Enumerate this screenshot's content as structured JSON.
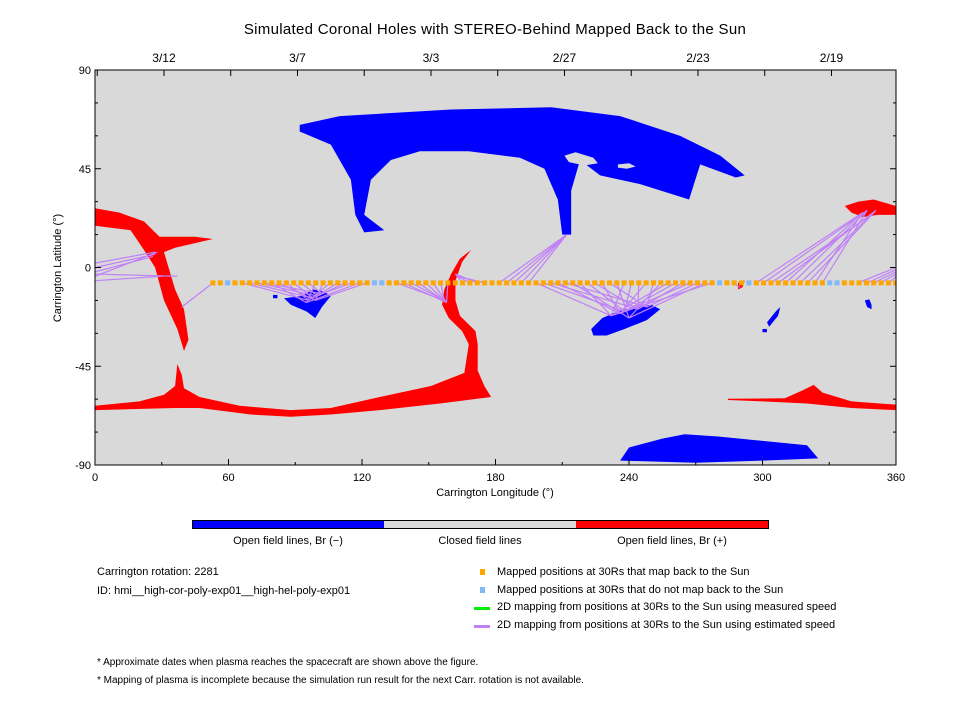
{
  "chart_data": {
    "type": "map",
    "title": "Simulated Coronal Holes with STEREO-Behind Mapped Back to the Sun",
    "xlabel": "Carrington Longitude (°)",
    "ylabel": "Carrington Latitude (°)",
    "xlim": [
      0,
      360
    ],
    "ylim": [
      -90,
      90
    ],
    "xticks": [
      0,
      60,
      120,
      180,
      240,
      300,
      360
    ],
    "yticks": [
      90,
      45,
      0,
      -45,
      -90
    ],
    "top_dates": [
      {
        "lon": 31,
        "label": "3/12"
      },
      {
        "lon": 91,
        "label": "3/7"
      },
      {
        "lon": 151,
        "label": "3/3"
      },
      {
        "lon": 211,
        "label": "2/27"
      },
      {
        "lon": 271,
        "label": "2/23"
      },
      {
        "lon": 331,
        "label": "2/19"
      }
    ],
    "colors": {
      "background": "#d9d9d9",
      "open_neg": "#0000ff",
      "open_pos": "#ff0000",
      "mapped": "#ffa500",
      "unmapped": "#80b8f8",
      "measured": "#00ee00",
      "estimated": "#c080f8"
    },
    "regions": [
      {
        "polarity": "neg",
        "points": [
          [
            92,
            65
          ],
          [
            110,
            69
          ],
          [
            160,
            72
          ],
          [
            205,
            73
          ],
          [
            236,
            69
          ],
          [
            263,
            60
          ],
          [
            281,
            51
          ],
          [
            292,
            42
          ],
          [
            288,
            41
          ],
          [
            272,
            47
          ],
          [
            267,
            31
          ],
          [
            245,
            38
          ],
          [
            227,
            42
          ],
          [
            218,
            49
          ],
          [
            214,
            35
          ],
          [
            214,
            15
          ],
          [
            210,
            15
          ],
          [
            208,
            31
          ],
          [
            202,
            45
          ],
          [
            191,
            50
          ],
          [
            168,
            53
          ],
          [
            146,
            53
          ],
          [
            133,
            49
          ],
          [
            124,
            40
          ],
          [
            121,
            24
          ],
          [
            130,
            17
          ],
          [
            121,
            16
          ],
          [
            117,
            24
          ],
          [
            115,
            40
          ],
          [
            106,
            56
          ],
          [
            92,
            62
          ]
        ]
      },
      {
        "polarity": "closed",
        "points": [
          [
            211,
            51
          ],
          [
            216,
            52.5
          ],
          [
            224,
            50
          ],
          [
            226,
            47.5
          ],
          [
            220,
            46.5
          ],
          [
            213,
            48
          ]
        ]
      },
      {
        "polarity": "closed",
        "points": [
          [
            235,
            47
          ],
          [
            240,
            47.5
          ],
          [
            243,
            46
          ],
          [
            239,
            45
          ],
          [
            235,
            45.5
          ]
        ]
      },
      {
        "polarity": "neg",
        "points": [
          [
            236,
            -88
          ],
          [
            240,
            -82
          ],
          [
            255,
            -78
          ],
          [
            265,
            -76
          ],
          [
            280,
            -77
          ],
          [
            300,
            -79
          ],
          [
            320,
            -81
          ],
          [
            325,
            -87
          ],
          [
            300,
            -88
          ],
          [
            270,
            -89
          ]
        ]
      },
      {
        "polarity": "neg",
        "points": [
          [
            85,
            -14
          ],
          [
            93,
            -13
          ],
          [
            98,
            -10
          ],
          [
            103,
            -11
          ],
          [
            106,
            -13
          ],
          [
            102,
            -18
          ],
          [
            99,
            -23
          ],
          [
            95,
            -20
          ],
          [
            88,
            -17
          ]
        ]
      },
      {
        "polarity": "neg",
        "points": [
          [
            80,
            -12.5
          ],
          [
            82,
            -12.5
          ],
          [
            82,
            -14
          ],
          [
            80,
            -14
          ]
        ]
      },
      {
        "polarity": "neg",
        "points": [
          [
            223,
            -28
          ],
          [
            228,
            -23
          ],
          [
            235,
            -20
          ],
          [
            243,
            -18
          ],
          [
            250,
            -17
          ],
          [
            254,
            -19
          ],
          [
            248,
            -24
          ],
          [
            238,
            -28
          ],
          [
            230,
            -31
          ],
          [
            224,
            -31
          ]
        ]
      },
      {
        "polarity": "neg",
        "points": [
          [
            308,
            -18
          ],
          [
            307,
            -22
          ],
          [
            303,
            -27
          ],
          [
            302,
            -25
          ],
          [
            306,
            -20
          ]
        ]
      },
      {
        "polarity": "neg",
        "points": [
          [
            300,
            -28
          ],
          [
            302,
            -28
          ],
          [
            302,
            -29.5
          ],
          [
            300,
            -29.5
          ]
        ]
      },
      {
        "polarity": "neg",
        "points": [
          [
            346,
            -15
          ],
          [
            348,
            -14.5
          ],
          [
            349,
            -17
          ],
          [
            349,
            -19
          ],
          [
            347,
            -18
          ]
        ]
      },
      {
        "polarity": "pos",
        "points": [
          [
            0,
            27
          ],
          [
            11,
            25
          ],
          [
            22,
            21
          ],
          [
            29,
            14
          ],
          [
            45,
            14
          ],
          [
            53,
            13
          ],
          [
            36,
            9
          ],
          [
            31,
            7
          ],
          [
            36,
            -10
          ],
          [
            40,
            -19
          ],
          [
            42,
            -33
          ],
          [
            40,
            -38
          ],
          [
            37,
            -28
          ],
          [
            31,
            -15
          ],
          [
            27,
            0
          ],
          [
            22,
            8
          ],
          [
            16,
            17
          ],
          [
            0,
            19
          ]
        ]
      },
      {
        "polarity": "pos",
        "points": [
          [
            169,
            8
          ],
          [
            165,
            2.5
          ],
          [
            162,
            -6
          ],
          [
            162,
            -15
          ],
          [
            164,
            -22
          ],
          [
            171,
            -29
          ],
          [
            172,
            -35
          ],
          [
            172,
            -47
          ],
          [
            175,
            -54
          ],
          [
            178,
            -59
          ],
          [
            155,
            -62
          ],
          [
            128,
            -65
          ],
          [
            106,
            -67
          ],
          [
            88,
            -68
          ],
          [
            70,
            -67
          ],
          [
            47,
            -64
          ],
          [
            36,
            -64
          ],
          [
            0,
            -65
          ],
          [
            0,
            -63
          ],
          [
            20,
            -61
          ],
          [
            31,
            -58
          ],
          [
            36,
            -54
          ],
          [
            37,
            -44
          ],
          [
            39,
            -49
          ],
          [
            40,
            -55
          ],
          [
            47,
            -59
          ],
          [
            65,
            -63
          ],
          [
            88,
            -65
          ],
          [
            106,
            -64
          ],
          [
            128,
            -59
          ],
          [
            151,
            -54
          ],
          [
            166,
            -48
          ],
          [
            168,
            -35
          ],
          [
            165,
            -29
          ],
          [
            159,
            -23
          ],
          [
            156,
            -17
          ],
          [
            157,
            -10
          ],
          [
            160,
            -3
          ],
          [
            164,
            4
          ]
        ]
      },
      {
        "polarity": "pos",
        "points": [
          [
            284.5,
            -59.8
          ],
          [
            310,
            -59.6
          ],
          [
            318,
            -56
          ],
          [
            323,
            -53.5
          ],
          [
            327,
            -57
          ],
          [
            340,
            -61
          ],
          [
            360,
            -62.5
          ],
          [
            360,
            -65
          ],
          [
            340,
            -64
          ],
          [
            320,
            -62
          ],
          [
            300,
            -61
          ],
          [
            284.5,
            -60.4
          ]
        ]
      },
      {
        "polarity": "pos",
        "points": [
          [
            337,
            28
          ],
          [
            343,
            30
          ],
          [
            350,
            31
          ],
          [
            360,
            28
          ],
          [
            360,
            24
          ],
          [
            352,
            24
          ],
          [
            345,
            23
          ],
          [
            340,
            25
          ]
        ]
      },
      {
        "polarity": "pos",
        "points": [
          [
            289,
            -7
          ],
          [
            292,
            -6
          ],
          [
            291,
            -9
          ],
          [
            289,
            -10
          ]
        ]
      }
    ],
    "mapped_positions": {
      "lat": -7,
      "lon_start": 53,
      "lon_step": 3.3,
      "lon_end": 360,
      "unmapped_lons": [
        61,
        127,
        130,
        281,
        294,
        329,
        333
      ]
    },
    "mapping_lines": [
      {
        "from": [
          [
            0,
            2
          ],
          [
            0,
            0
          ],
          [
            0,
            -2
          ],
          [
            0,
            -3
          ],
          [
            0,
            -4
          ],
          [
            0,
            -6
          ]
        ],
        "to": [
          [
            27,
            7
          ],
          [
            27,
            6
          ],
          [
            26,
            5
          ],
          [
            37,
            -4
          ],
          [
            28,
            7
          ],
          [
            30,
            -4
          ]
        ]
      },
      {
        "from": [
          [
            343,
            -7
          ],
          [
            347,
            -7
          ],
          [
            350,
            -7
          ],
          [
            353,
            -7
          ],
          [
            357,
            -7
          ]
        ],
        "to": [
          [
            360,
            0
          ],
          [
            360,
            -1
          ],
          [
            360,
            -2
          ],
          [
            360,
            -3
          ],
          [
            360,
            -4
          ]
        ]
      },
      {
        "from": [
          [
            53,
            -7
          ]
        ],
        "to": [
          [
            39,
            -18
          ]
        ]
      },
      {
        "from_range": [
          66,
          123
        ],
        "to": [
          [
            96,
            -15
          ],
          [
            98,
            -14
          ],
          [
            100,
            -13
          ],
          [
            102,
            -12
          ],
          [
            95,
            -16
          ],
          [
            99,
            -15
          ]
        ]
      },
      {
        "from_range": [
          133,
          161
        ],
        "to": [
          [
            157,
            -15
          ],
          [
            158,
            -16
          ]
        ]
      },
      {
        "from_range": [
          164,
          176
        ],
        "to": [
          [
            162,
            -3
          ],
          [
            163,
            -4
          ]
        ]
      },
      {
        "from_range": [
          179,
          195
        ],
        "to": [
          [
            212,
            15
          ],
          [
            211,
            14
          ]
        ]
      },
      {
        "from_range": [
          198,
          278
        ],
        "to": [
          [
            232,
            -22
          ],
          [
            238,
            -20
          ],
          [
            244,
            -19
          ],
          [
            236,
            -21
          ],
          [
            248,
            -18
          ],
          [
            240,
            -23
          ]
        ]
      },
      {
        "from": [
          [
            286,
            -7
          ]
        ],
        "to": [
          [
            290,
            -9
          ]
        ]
      },
      {
        "from_range": [
          297,
          327
        ],
        "to": [
          [
            345,
            25
          ],
          [
            347,
            26
          ],
          [
            349,
            24
          ],
          [
            351,
            26
          ]
        ]
      }
    ]
  },
  "colorbar": {
    "labels": [
      "Open field lines, Br (−)",
      "Closed field lines",
      "Open field lines, Br (+)"
    ]
  },
  "info": {
    "rotation": "Carrington rotation: 2281",
    "id": "ID: hmi__high-cor-poly-exp01__high-hel-poly-exp01"
  },
  "legend": [
    "Mapped positions at 30Rs that map back to the Sun",
    "Mapped positions at 30Rs that do not map back to the Sun",
    "2D mapping from positions at 30Rs to the Sun using measured speed",
    "2D mapping from positions at 30Rs to the Sun using estimated speed"
  ],
  "notes": [
    "* Approximate dates when plasma reaches the spacecraft are shown above the figure.",
    "* Mapping of plasma is incomplete because the simulation run result for the next Carr. rotation is not available."
  ]
}
